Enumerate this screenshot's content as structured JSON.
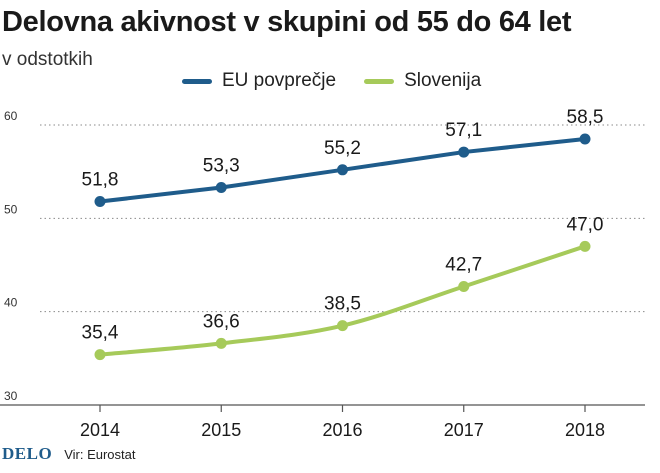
{
  "header": {
    "title": "Delovna akivnost v skupini od 55 do 64 let",
    "subtitle": "v odstotkih"
  },
  "footer": {
    "logo": "DELO",
    "source": "Vir: Eurostat"
  },
  "colors": {
    "eu": "#1f5c8b",
    "slovenia": "#a6ca5a",
    "grid": "#8a8a8a",
    "text": "#1a1a1a"
  },
  "chart_data": {
    "type": "line",
    "title": "Delovna akivnost v skupini od 55 do 64 let",
    "subtitle": "v odstotkih",
    "x": [
      2014,
      2015,
      2016,
      2017,
      2018
    ],
    "x_tick_labels": [
      "2014",
      "2015",
      "2016",
      "2017",
      "2018"
    ],
    "y_ticks": [
      30,
      40,
      50,
      60
    ],
    "y_tick_labels": [
      "30",
      "40",
      "50",
      "60"
    ],
    "ylim": [
      30,
      60
    ],
    "grid": "horizontal dotted",
    "legend_position": "top",
    "series": [
      {
        "name": "EU povprečje",
        "color": "#1f5c8b",
        "values": [
          51.8,
          53.3,
          55.2,
          57.1,
          58.5
        ],
        "labels": [
          "51,8",
          "53,3",
          "55,2",
          "57,1",
          "58,5"
        ]
      },
      {
        "name": "Slovenija",
        "color": "#a6ca5a",
        "values": [
          35.4,
          36.6,
          38.5,
          42.7,
          47.0
        ],
        "labels": [
          "35,4",
          "36,6",
          "38,5",
          "42,7",
          "47,0"
        ]
      }
    ]
  }
}
